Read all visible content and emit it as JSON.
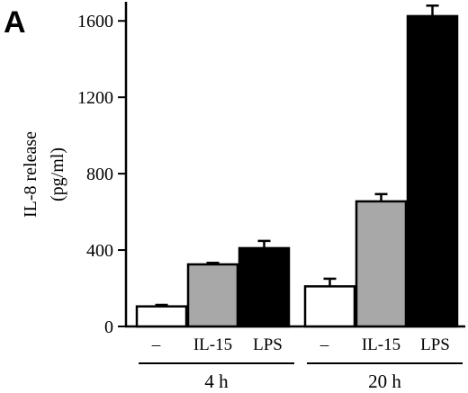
{
  "panel_label": "A",
  "chart_data": {
    "type": "bar",
    "ylabel_lines": [
      "IL-8 release",
      "(pg/ml)"
    ],
    "ylim": [
      0,
      1700
    ],
    "yticks": [
      0,
      400,
      800,
      1200,
      1600
    ],
    "ytick_labels": [
      "0",
      "400",
      "800",
      "1200",
      "1600"
    ],
    "groups": [
      {
        "label": "4 h",
        "bars": [
          {
            "category": "–",
            "value": 105,
            "error": 8,
            "color": "#ffffff"
          },
          {
            "category": "IL-15",
            "value": 325,
            "error": 8,
            "color": "#a8a8a8"
          },
          {
            "category": "LPS",
            "value": 410,
            "error": 38,
            "color": "#000000"
          }
        ]
      },
      {
        "label": "20 h",
        "bars": [
          {
            "category": "–",
            "value": 210,
            "error": 40,
            "color": "#ffffff"
          },
          {
            "category": "IL-15",
            "value": 655,
            "error": 38,
            "color": "#a8a8a8"
          },
          {
            "category": "LPS",
            "value": 1625,
            "error": 55,
            "color": "#000000"
          }
        ]
      }
    ],
    "grid": false,
    "legend": "none"
  }
}
